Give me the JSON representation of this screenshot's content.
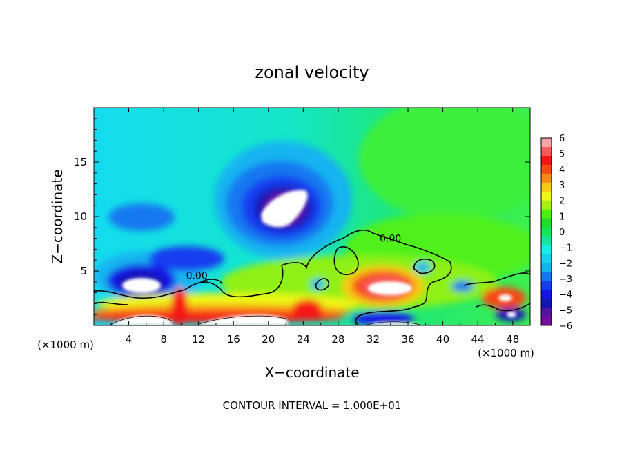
{
  "chart_data": {
    "type": "heatmap",
    "title": "zonal velocity",
    "xlabel": "X−coordinate",
    "ylabel": "Z−coordinate",
    "x_unit_left": "(×1000 m)",
    "x_unit_right": "(×1000 m)",
    "footer": "CONTOUR INTERVAL = 1.000E+01",
    "xlim": [
      0,
      50
    ],
    "ylim": [
      0,
      20
    ],
    "x_ticks": [
      4,
      8,
      12,
      16,
      20,
      24,
      28,
      32,
      36,
      40,
      44,
      48
    ],
    "x_tick_labels": [
      "4",
      "8",
      "12",
      "16",
      "20",
      "24",
      "28",
      "32",
      "36",
      "40",
      "44",
      "48"
    ],
    "y_ticks": [
      5,
      10,
      15
    ],
    "y_tick_labels": [
      "5",
      "10",
      "15"
    ],
    "contour_labels": [
      {
        "text": "0.00",
        "x": 34.0,
        "y": 8.0
      },
      {
        "text": "0.00",
        "x": 11.8,
        "y": 4.6
      }
    ],
    "colorbar": {
      "min": -6,
      "max": 6,
      "labels": [
        "6",
        "5",
        "4",
        "3",
        "2",
        "1",
        "0",
        "−1",
        "−2",
        "−3",
        "−4",
        "−5",
        "−6"
      ],
      "label_values": [
        6,
        5,
        4,
        3,
        2,
        1,
        0,
        -1,
        -2,
        -3,
        -4,
        -5,
        -6
      ],
      "colors_top_to_bottom": [
        "#f4a6a6",
        "#f75a5a",
        "#f51414",
        "#f54a14",
        "#f78a14",
        "#f7c814",
        "#eef814",
        "#a8f014",
        "#4ef014",
        "#1edc28",
        "#14e65a",
        "#14e6a0",
        "#14f0e6",
        "#14d2f0",
        "#14b4f0",
        "#1478f0",
        "#143cf0",
        "#1414e6",
        "#1414b4",
        "#5014a0",
        "#780aa0"
      ]
    },
    "features": [
      {
        "kind": "max-negative",
        "x": 21.5,
        "y": 10.8,
        "value": -6
      },
      {
        "kind": "max-negative",
        "x": 5.5,
        "y": 3.9,
        "value": -6
      },
      {
        "kind": "max-positive",
        "x": 33,
        "y": 3.2,
        "value": 6
      },
      {
        "kind": "max-positive",
        "x": 47.2,
        "y": 2.6,
        "value": 6
      }
    ]
  }
}
